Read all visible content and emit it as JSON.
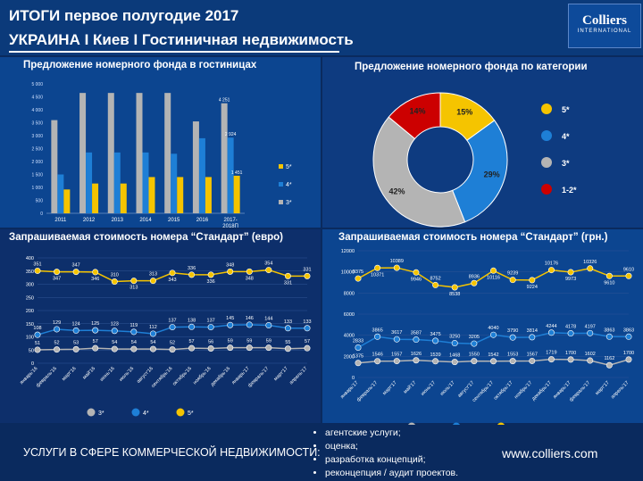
{
  "header": {
    "title_line1": "ИТОГИ первое полугодие 2017",
    "title_line2": "УКРАИНА I  Киев I Гостиничная недвижимость",
    "logo_name": "Colliers",
    "logo_sub": "INTERNATIONAL"
  },
  "colors": {
    "star5": "#f5c400",
    "star4": "#1e7fd6",
    "star3": "#b4b4b4",
    "star12": "#cc0000"
  },
  "chart_data": [
    {
      "type": "bar",
      "title": "Предложение номерного фонда в гостиницах",
      "categories": [
        "2011",
        "2012",
        "2013",
        "2014",
        "2015",
        "2016",
        "2017-2018П"
      ],
      "yticks": [
        "0",
        "500",
        "1 000",
        "1 500",
        "2 000",
        "2 500",
        "3 000",
        "3 500",
        "4 000",
        "4 500",
        "5 000"
      ],
      "ylim": [
        0,
        5000
      ],
      "series": [
        {
          "name": "3*",
          "values": [
            3600,
            4650,
            4650,
            4650,
            4650,
            3550,
            4251
          ]
        },
        {
          "name": "4*",
          "values": [
            1500,
            2350,
            2350,
            2350,
            2300,
            2900,
            2924
          ]
        },
        {
          "name": "5*",
          "values": [
            920,
            1150,
            1150,
            1400,
            1400,
            1400,
            1451
          ]
        }
      ],
      "data_labels": {
        "3*": {
          "6": "4 251"
        },
        "4*": {
          "6": "2 924"
        },
        "5*": {
          "6": "1 451"
        }
      },
      "legend": [
        "5*",
        "4*",
        "3*"
      ]
    },
    {
      "type": "pie",
      "title": "Предложение номерного фонда по категории",
      "slices": [
        {
          "label": "5*",
          "value": 15,
          "text": "15%"
        },
        {
          "label": "4*",
          "value": 29,
          "text": "29%"
        },
        {
          "label": "3*",
          "value": 42,
          "text": "42%"
        },
        {
          "label": "1-2*",
          "value": 14,
          "text": "14%"
        }
      ],
      "legend": [
        "5*",
        "4*",
        "3*",
        "1-2*"
      ]
    },
    {
      "type": "line",
      "title": "Запрашиваемая стоимость номера “Стандарт” (евро)",
      "categories": [
        "январь'16",
        "февраль'16",
        "март'16",
        "май'16",
        "июнь'16",
        "июль'16",
        "август'16",
        "сентябрь'16",
        "октябрь'16",
        "ноябрь'16",
        "декабрь'16",
        "январь'17",
        "февраль'17",
        "март'17",
        "апрель'17"
      ],
      "yticks": [
        "0",
        "50",
        "100",
        "150",
        "200",
        "250",
        "300",
        "350",
        "400"
      ],
      "ylim": [
        0,
        400
      ],
      "series": [
        {
          "name": "3*",
          "values": [
            51,
            52,
            53,
            57,
            54,
            54,
            54,
            52,
            57,
            56,
            59,
            59,
            59,
            55,
            57
          ]
        },
        {
          "name": "4*",
          "values": [
            108,
            129,
            124,
            125,
            123,
            119,
            112,
            137,
            138,
            137,
            145,
            146,
            144,
            133,
            133
          ]
        },
        {
          "name": "5*",
          "values": [
            351,
            347,
            347,
            346,
            310,
            313,
            313,
            343,
            336,
            336,
            348,
            348,
            354,
            331,
            331
          ]
        }
      ],
      "legend": [
        "3*",
        "4*",
        "5*"
      ]
    },
    {
      "type": "line",
      "title": "Запрашиваемая стоимость номера “Стандарт” (грн.)",
      "categories": [
        "январь'17",
        "февраль'17",
        "март'17",
        "май'17",
        "июнь'17",
        "июль'17",
        "август'17",
        "сентябрь'17",
        "октябрь'17",
        "ноябрь'17",
        "декабрь'17",
        "январь'17",
        "февраль'17",
        "март'17",
        "апрель'17"
      ],
      "yticks": [
        "0",
        "2000",
        "4000",
        "6000",
        "8000",
        "10000",
        "12000"
      ],
      "ylim": [
        0,
        12000
      ],
      "series": [
        {
          "name": "3*",
          "values": [
            1375,
            1546,
            1557,
            1626,
            1539,
            1468,
            1550,
            1542,
            1553,
            1567,
            1719,
            1700,
            1602,
            1162,
            1700
          ]
        },
        {
          "name": "4*",
          "values": [
            2833,
            3865,
            3617,
            3587,
            3475,
            3250,
            3205,
            4040,
            3790,
            3814,
            4244,
            4178,
            4197,
            3863,
            3863
          ]
        },
        {
          "name": "5*",
          "values": [
            9375,
            10371,
            10389,
            9946,
            8752,
            8538,
            8936,
            10116,
            9239,
            9224,
            10176,
            9973,
            10326,
            9610,
            9610
          ]
        }
      ],
      "legend": [
        "3*",
        "4*",
        "5*"
      ]
    }
  ],
  "footer": {
    "services_label": "УСЛУГИ В СФЕРЕ КОММЕРЧЕСКОЙ НЕДВИЖИМОСТИ:",
    "services": [
      "агентские услуги;",
      "оценка;",
      "разработка концепций;",
      "реконцепция / аудит проектов."
    ],
    "website": "www.colliers.com"
  }
}
